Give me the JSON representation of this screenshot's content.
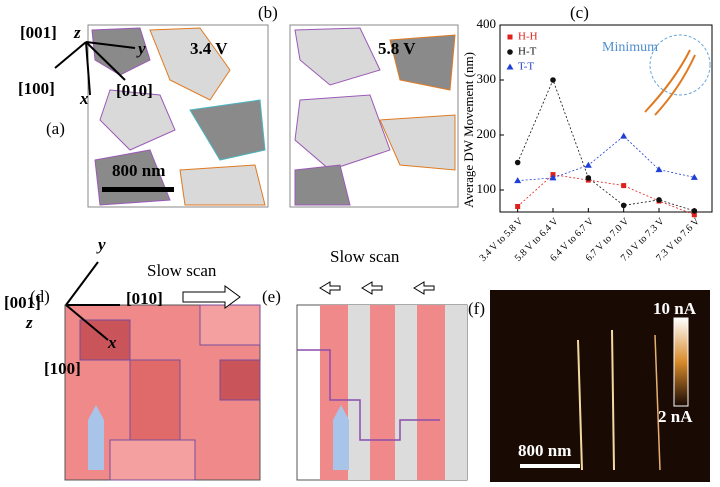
{
  "figure": {
    "a": {
      "label": "(a)",
      "voltage": "3.4 V",
      "scale": "800 nm",
      "dir001": "[001]",
      "z": "z",
      "y": "y",
      "x": "x",
      "dir100": "[100]",
      "dir010": "[010]"
    },
    "b": {
      "label": "(b)",
      "voltage": "5.8 V"
    },
    "d": {
      "label": "(d)",
      "dir001": "[001]",
      "z": "z",
      "y": "y",
      "x": "x",
      "dir100": "[100]",
      "dir010": "[010]",
      "scan": "Slow scan"
    },
    "e": {
      "label": "(e)",
      "scan": "Slow scan"
    },
    "f": {
      "label": "(f)",
      "cmax": "10 nA",
      "cmin": "2 nA",
      "scale": "800 nm"
    }
  },
  "chart_data": {
    "type": "line",
    "panel_label": "(c)",
    "y_label": "Average DW Movement (nm)",
    "annotation": "Minimum",
    "categories": [
      "3.4 V to 5.8 V",
      "5.8 V to 6.4 V",
      "6.4 V to 6.7 V",
      "6.7 V to 7.0 V",
      "7.0 V to 7.3 V",
      "7.3 V to 7.6 V"
    ],
    "series": [
      {
        "name": "H-H",
        "color": "#e0201b",
        "marker": "square",
        "values": [
          70,
          128,
          118,
          108,
          80,
          55
        ]
      },
      {
        "name": "H-T",
        "color": "#111111",
        "marker": "circle",
        "values": [
          150,
          300,
          122,
          72,
          82,
          62
        ]
      },
      {
        "name": "T-T",
        "color": "#1f3fd6",
        "marker": "triangle",
        "values": [
          117,
          122,
          145,
          198,
          137,
          123
        ]
      }
    ],
    "ylim": [
      60,
      400
    ],
    "yticks": [
      100,
      200,
      300,
      400
    ],
    "legend": "top-left"
  }
}
